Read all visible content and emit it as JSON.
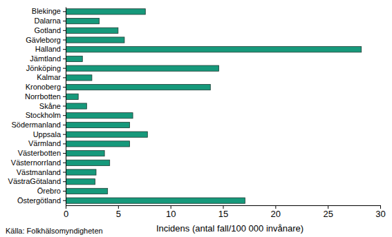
{
  "chart_data": {
    "type": "bar",
    "orientation": "horizontal",
    "categories": [
      "Blekinge",
      "Dalarna",
      "Gotland",
      "Gävleborg",
      "Halland",
      "Jämtland",
      "Jönköping",
      "Kalmar",
      "Kronoberg",
      "Norrbotten",
      "Skåne",
      "Stockholm",
      "Södermanland",
      "Uppsala",
      "Värmland",
      "Västerbotten",
      "Västernorrland",
      "Västmanland",
      "VästraGötaland",
      "Örebro",
      "Östergötland"
    ],
    "values": [
      7.6,
      3.2,
      5.0,
      5.6,
      28.2,
      1.6,
      14.6,
      2.5,
      13.8,
      1.2,
      2.0,
      6.4,
      6.1,
      7.8,
      6.1,
      3.7,
      4.2,
      2.9,
      2.8,
      4.0,
      17.1
    ],
    "color": "#16997b",
    "xlabel": "Incidens (antal fall/100 000 invånare)",
    "xlim": [
      0,
      30
    ],
    "xticks": [
      0,
      5,
      10,
      15,
      20,
      25,
      30
    ],
    "annotations": [
      "Källa: Folkhälsomyndigheten"
    ],
    "grid": false
  }
}
